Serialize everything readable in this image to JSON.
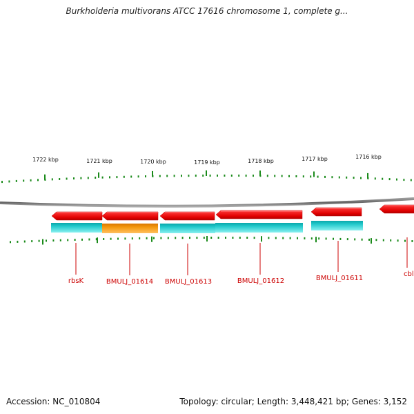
{
  "title": "Burkholderia multivorans ATCC 17616 chromosome 1, complete g...",
  "footer": {
    "accession": "Accession: NC_010804",
    "stats": "Topology: circular; Length: 3,448,421 bp; Genes: 3,152"
  },
  "map": {
    "scale_labels": [
      "1722 kbp",
      "1721 kbp",
      "1720 kbp",
      "1719 kbp",
      "1718 kbp",
      "1717 kbp",
      "1716 kbp"
    ],
    "genes": [
      {
        "label": "rbsK",
        "strand": "minus",
        "highlighted": false
      },
      {
        "label": "BMULJ_01614",
        "strand": "minus",
        "highlighted": true
      },
      {
        "label": "BMULJ_01613",
        "strand": "minus",
        "highlighted": false
      },
      {
        "label": "BMULJ_01612",
        "strand": "minus",
        "highlighted": false
      },
      {
        "label": "BMULJ_01611",
        "strand": "minus",
        "highlighted": false
      },
      {
        "label": "cbl",
        "strand": "minus",
        "highlighted": false
      }
    ],
    "colors": {
      "gene": "#ee0000",
      "cds": "#1cc8cc",
      "cds_highlight": "#f39a10",
      "tick": "#1a8a1a",
      "backbone": "#777777",
      "label": "#cc0000"
    }
  }
}
